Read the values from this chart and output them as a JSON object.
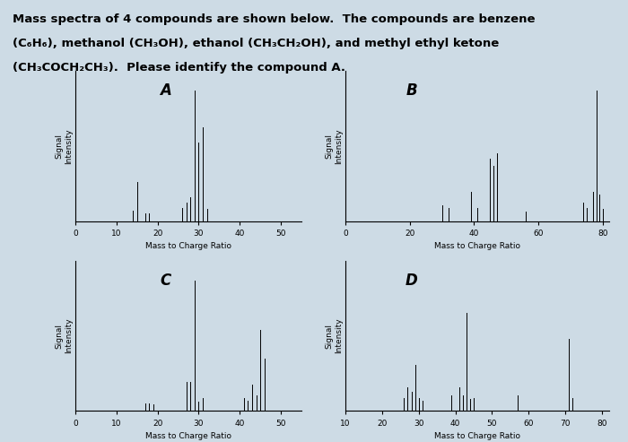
{
  "title_lines": [
    "Mass spectra of 4 compounds are shown below.  The compounds are benzene",
    "(C₆H₆), methanol (CH₃OH), ethanol (CH₃CH₂OH), and methyl ethyl ketone",
    "(CH₃COCH₂CH₃).  Please identify the compound A."
  ],
  "title_fontsize": 9.5,
  "bg_color": "#cddbe5",
  "panel_bg": "#c8d8e4",
  "panels": [
    {
      "label": "A",
      "xlabel": "Mass to Charge Ratio",
      "ylabel": "Signal\nIntensity",
      "xlim": [
        0,
        55
      ],
      "xticks": [
        0,
        10,
        20,
        30,
        40,
        50
      ],
      "peaks": [
        {
          "mz": 14,
          "intensity": 0.08
        },
        {
          "mz": 15,
          "intensity": 0.3
        },
        {
          "mz": 17,
          "intensity": 0.06
        },
        {
          "mz": 18,
          "intensity": 0.06
        },
        {
          "mz": 26,
          "intensity": 0.1
        },
        {
          "mz": 27,
          "intensity": 0.14
        },
        {
          "mz": 28,
          "intensity": 0.18
        },
        {
          "mz": 29,
          "intensity": 1.0
        },
        {
          "mz": 30,
          "intensity": 0.6
        },
        {
          "mz": 31,
          "intensity": 0.72
        },
        {
          "mz": 32,
          "intensity": 0.09
        }
      ]
    },
    {
      "label": "B",
      "xlabel": "Mass to Charge Ratio",
      "ylabel": "Signal\nIntensity",
      "xlim": [
        0,
        82
      ],
      "xticks": [
        0,
        20,
        40,
        60,
        80
      ],
      "peaks": [
        {
          "mz": 30,
          "intensity": 0.12
        },
        {
          "mz": 32,
          "intensity": 0.1
        },
        {
          "mz": 39,
          "intensity": 0.22
        },
        {
          "mz": 41,
          "intensity": 0.1
        },
        {
          "mz": 45,
          "intensity": 0.48
        },
        {
          "mz": 46,
          "intensity": 0.42
        },
        {
          "mz": 47,
          "intensity": 0.52
        },
        {
          "mz": 56,
          "intensity": 0.07
        },
        {
          "mz": 74,
          "intensity": 0.14
        },
        {
          "mz": 75,
          "intensity": 0.1
        },
        {
          "mz": 77,
          "intensity": 0.22
        },
        {
          "mz": 78,
          "intensity": 1.0
        },
        {
          "mz": 79,
          "intensity": 0.2
        },
        {
          "mz": 80,
          "intensity": 0.09
        }
      ]
    },
    {
      "label": "C",
      "xlabel": "Mass to Charge Ratio",
      "ylabel": "Signal\nIntensity",
      "xlim": [
        0,
        55
      ],
      "xticks": [
        0,
        10,
        20,
        30,
        40,
        50
      ],
      "peaks": [
        {
          "mz": 17,
          "intensity": 0.06
        },
        {
          "mz": 18,
          "intensity": 0.06
        },
        {
          "mz": 19,
          "intensity": 0.05
        },
        {
          "mz": 27,
          "intensity": 0.22
        },
        {
          "mz": 28,
          "intensity": 0.22
        },
        {
          "mz": 29,
          "intensity": 1.0
        },
        {
          "mz": 30,
          "intensity": 0.07
        },
        {
          "mz": 31,
          "intensity": 0.1
        },
        {
          "mz": 41,
          "intensity": 0.1
        },
        {
          "mz": 42,
          "intensity": 0.08
        },
        {
          "mz": 43,
          "intensity": 0.2
        },
        {
          "mz": 44,
          "intensity": 0.12
        },
        {
          "mz": 45,
          "intensity": 0.62
        },
        {
          "mz": 46,
          "intensity": 0.4
        }
      ]
    },
    {
      "label": "D",
      "xlabel": "Mass to Charge Ratio",
      "ylabel": "Signal\nIntensity",
      "xlim": [
        10,
        82
      ],
      "xticks": [
        10,
        20,
        30,
        40,
        50,
        60,
        70,
        80
      ],
      "peaks": [
        {
          "mz": 26,
          "intensity": 0.1
        },
        {
          "mz": 27,
          "intensity": 0.18
        },
        {
          "mz": 28,
          "intensity": 0.15
        },
        {
          "mz": 29,
          "intensity": 0.35
        },
        {
          "mz": 30,
          "intensity": 0.1
        },
        {
          "mz": 31,
          "intensity": 0.08
        },
        {
          "mz": 39,
          "intensity": 0.12
        },
        {
          "mz": 41,
          "intensity": 0.18
        },
        {
          "mz": 42,
          "intensity": 0.12
        },
        {
          "mz": 43,
          "intensity": 0.75
        },
        {
          "mz": 44,
          "intensity": 0.09
        },
        {
          "mz": 45,
          "intensity": 0.1
        },
        {
          "mz": 57,
          "intensity": 0.12
        },
        {
          "mz": 71,
          "intensity": 0.55
        },
        {
          "mz": 72,
          "intensity": 0.1
        }
      ]
    }
  ]
}
